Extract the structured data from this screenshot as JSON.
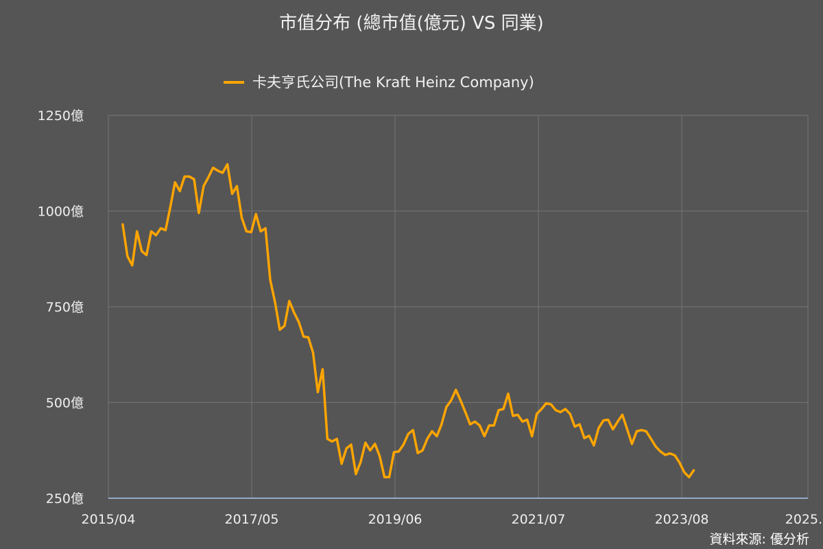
{
  "page_title": "市值分布 (總市值(億元) VS 同業)",
  "source_label": "資料來源: 優分析",
  "colors": {
    "background": "#555555",
    "grid": "#707070",
    "axis": "#a8c8f0",
    "series": "#ffa500",
    "text": "#f2f2f2"
  },
  "chart_data": {
    "type": "line",
    "title": "市值分布 (總市值(億元) VS 同業)",
    "legend_position": "top-center",
    "grid": true,
    "ylim": [
      250,
      1250
    ],
    "y_ticks": [
      250,
      500,
      750,
      1000,
      1250
    ],
    "y_tick_labels": [
      "250億",
      "500億",
      "750億",
      "1000億",
      "1250億"
    ],
    "x_tick_labels": [
      "2015/04",
      "2017/05",
      "2019/06",
      "2021/07",
      "2023/08",
      "2025..."
    ],
    "x_tick_positions": [
      0,
      25,
      50,
      75,
      100,
      122
    ],
    "xlim": [
      0,
      122
    ],
    "series": [
      {
        "name": "卡夫亨氏公司(The Kraft Heinz Company)",
        "x_start": 2.5,
        "x_step": 0.83,
        "values": [
          965,
          882,
          858,
          947,
          895,
          885,
          947,
          937,
          955,
          950,
          1010,
          1075,
          1052,
          1090,
          1090,
          1083,
          995,
          1065,
          1088,
          1113,
          1105,
          1100,
          1122,
          1045,
          1065,
          983,
          947,
          945,
          992,
          947,
          955,
          820,
          762,
          690,
          700,
          765,
          735,
          710,
          672,
          670,
          630,
          527,
          587,
          405,
          398,
          405,
          340,
          380,
          390,
          313,
          345,
          395,
          375,
          392,
          360,
          305,
          305,
          370,
          372,
          390,
          418,
          428,
          368,
          375,
          405,
          425,
          412,
          443,
          488,
          505,
          533,
          505,
          475,
          443,
          450,
          440,
          412,
          440,
          440,
          480,
          483,
          523,
          465,
          468,
          450,
          455,
          412,
          470,
          483,
          498,
          495,
          480,
          475,
          483,
          470,
          437,
          443,
          407,
          413,
          388,
          433,
          453,
          455,
          430,
          450,
          468,
          430,
          392,
          425,
          428,
          425,
          405,
          385,
          372,
          363,
          367,
          362,
          343,
          318,
          305,
          323
        ]
      }
    ]
  }
}
